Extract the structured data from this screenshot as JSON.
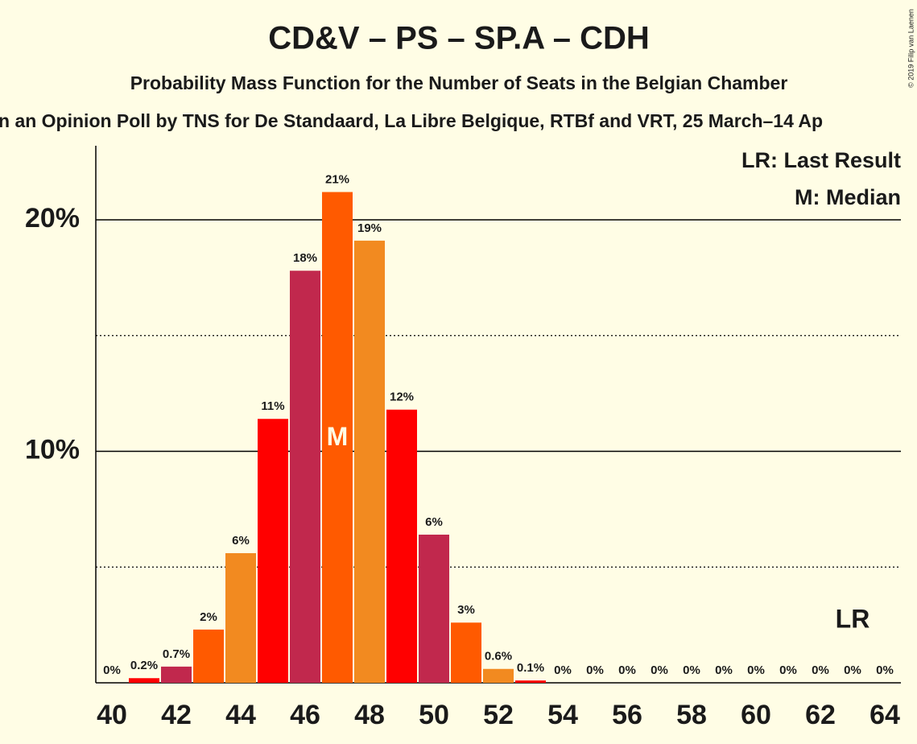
{
  "chart_data": {
    "type": "bar",
    "title": "CD&V – PS – SP.A – CDH",
    "subtitle": "Probability Mass Function for the Number of Seats in the Belgian Chamber",
    "subtitle2": "n an Opinion Poll by TNS for De Standaard, La Libre Belgique, RTBf and VRT, 25 March–14 Ap",
    "copyright": "© 2019 Filip van Laenen",
    "x": [
      40,
      41,
      42,
      43,
      44,
      45,
      46,
      47,
      48,
      49,
      50,
      51,
      52,
      53,
      54,
      55,
      56,
      57,
      58,
      59,
      60,
      61,
      62,
      63,
      64
    ],
    "values": [
      0,
      0.2,
      0.7,
      2.3,
      5.6,
      11.4,
      17.8,
      21.2,
      19.1,
      11.8,
      6.4,
      2.6,
      0.6,
      0.1,
      0,
      0,
      0,
      0,
      0,
      0,
      0,
      0,
      0,
      0,
      0
    ],
    "value_labels": [
      "0%",
      "0.2%",
      "0.7%",
      "2%",
      "6%",
      "11%",
      "18%",
      "21%",
      "19%",
      "12%",
      "6%",
      "3%",
      "0.6%",
      "0.1%",
      "0%",
      "0%",
      "0%",
      "0%",
      "0%",
      "0%",
      "0%",
      "0%",
      "0%",
      "0%",
      "0%"
    ],
    "colors": [
      "#ff0000",
      "#ff0000",
      "#c1284d",
      "#ff5a00",
      "#f28a20",
      "#ff0000",
      "#c1284d",
      "#ff5a00",
      "#f28a20",
      "#ff0000",
      "#c1284d",
      "#ff5a00",
      "#f28a20",
      "#ff0000",
      "#c1284d",
      "#ff5a00",
      "#f28a20",
      "#ff0000",
      "#c1284d",
      "#ff5a00",
      "#f28a20",
      "#ff0000",
      "#c1284d",
      "#ff5a00",
      "#f28a20"
    ],
    "xlim": [
      39.5,
      64.5
    ],
    "xticks": [
      40,
      42,
      44,
      46,
      48,
      50,
      52,
      54,
      56,
      58,
      60,
      62,
      64
    ],
    "ylim": [
      0,
      23.2
    ],
    "yticks": [
      {
        "value": 10,
        "label": "10%"
      },
      {
        "value": 20,
        "label": "20%"
      }
    ],
    "minor_yticks": [
      5,
      15
    ],
    "grid": true,
    "median": 47,
    "median_label": "M",
    "last_result": 63,
    "last_result_label": "LR",
    "legend": [
      "LR: Last Result",
      "M: Median"
    ],
    "legend_position": "upper right"
  }
}
